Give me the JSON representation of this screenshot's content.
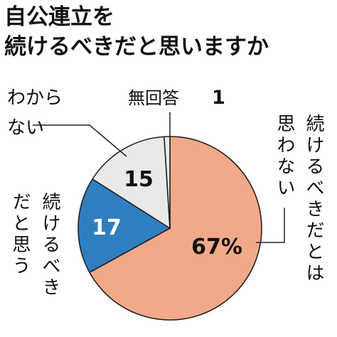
{
  "chart_data": {
    "type": "pie",
    "title_lines": [
      "自公連立を",
      "続けるべきだと思いますか"
    ],
    "unit": "%",
    "slices": [
      {
        "label": "続けるべきだとは思わない",
        "label_lines": [
          "続けるべきだとは",
          "思わない"
        ],
        "value": 67,
        "value_label": "67%",
        "color": "#f2a98a"
      },
      {
        "label": "続けるべきだと思う",
        "label_lines": [
          "続けるべき",
          "だと思う"
        ],
        "value": 17,
        "value_label": "17",
        "color": "#2f7fc0"
      },
      {
        "label": "わからない",
        "label_lines": [
          "わから",
          "ない"
        ],
        "value": 15,
        "value_label": "15",
        "color": "#e9e9e9"
      },
      {
        "label": "無回答",
        "label_lines": [
          "無回答"
        ],
        "value": 1,
        "value_label": "1",
        "color": "#e9e9e9"
      }
    ]
  }
}
